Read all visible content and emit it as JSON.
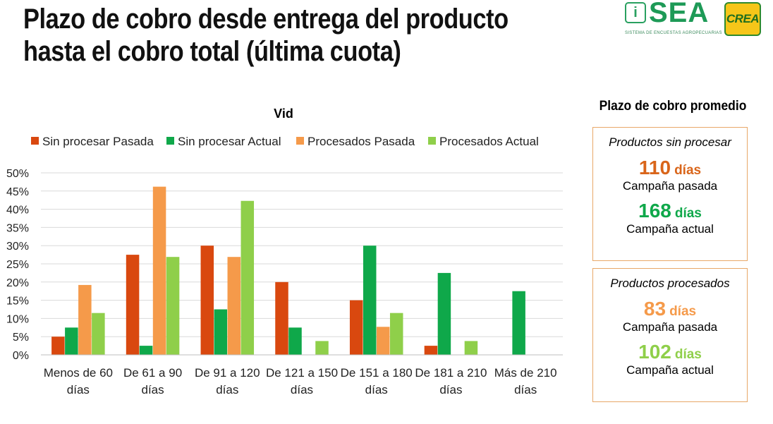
{
  "header": {
    "title_line1": "Plazo de cobro desde entrega del producto",
    "title_line2": "hasta el cobro total (última cuota)"
  },
  "logos": {
    "sea": {
      "badge": "i",
      "word": "SEA",
      "subtitle": "SISTEMA DE ENCUESTAS AGROPECUARIAS"
    },
    "crea": {
      "word": "CREA"
    }
  },
  "colors": {
    "sin_procesar_pasada": "#d9480f",
    "sin_procesar_actual": "#0fa84a",
    "procesados_pasada": "#f59a4a",
    "procesados_actual": "#8fcf4a",
    "box_border": "#e8a868"
  },
  "chart_data": {
    "type": "bar",
    "title": "Vid",
    "ylabel": "",
    "ylim": [
      0,
      50
    ],
    "yticks": [
      "0%",
      "5%",
      "10%",
      "15%",
      "20%",
      "25%",
      "30%",
      "35%",
      "40%",
      "45%",
      "50%"
    ],
    "grid": true,
    "legend": "top",
    "categories": [
      [
        "Menos de 60",
        "días"
      ],
      [
        "De 61 a 90",
        "días"
      ],
      [
        "De 91 a 120",
        "días"
      ],
      [
        "De 121 a 150",
        "días"
      ],
      [
        "De 151 a 180",
        "días"
      ],
      [
        "De 181 a 210",
        "días"
      ],
      [
        "Más de 210",
        "días"
      ]
    ],
    "series": [
      {
        "name": "Sin procesar Pasada",
        "color": "#d9480f",
        "values": [
          5,
          27.5,
          30,
          20,
          15,
          2.5,
          0
        ]
      },
      {
        "name": "Sin procesar Actual",
        "color": "#0fa84a",
        "values": [
          7.5,
          2.5,
          12.5,
          7.5,
          30,
          22.5,
          17.5
        ]
      },
      {
        "name": "Procesados Pasada",
        "color": "#f59a4a",
        "values": [
          19.2,
          46.2,
          26.9,
          0,
          7.7,
          0,
          0
        ]
      },
      {
        "name": "Procesados Actual",
        "color": "#8fcf4a",
        "values": [
          11.5,
          26.9,
          42.3,
          3.8,
          11.5,
          3.8,
          0
        ]
      }
    ]
  },
  "summary": {
    "title": "Plazo de cobro promedio",
    "sin_procesar": {
      "heading": "Productos sin procesar",
      "pasada_value": "110",
      "pasada_unit": "días",
      "pasada_label": "Campaña pasada",
      "pasada_color": "#d9651a",
      "actual_value": "168",
      "actual_unit": "días",
      "actual_label": "Campaña actual",
      "actual_color": "#0fa84a"
    },
    "procesados": {
      "heading": "Productos procesados",
      "pasada_value": "83",
      "pasada_unit": "días",
      "pasada_label": "Campaña pasada",
      "pasada_color": "#f59a4a",
      "actual_value": "102",
      "actual_unit": "días",
      "actual_label": "Campaña actual",
      "actual_color": "#8fcf4a"
    }
  }
}
